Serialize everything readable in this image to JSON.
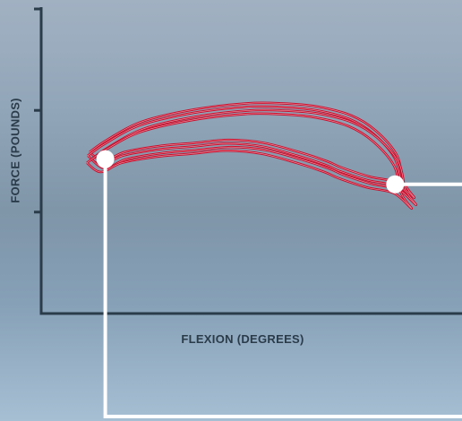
{
  "colors": {
    "axis": "#2a3b4a",
    "curve": "#c8102e",
    "curve_inner": "#f2c3cb",
    "callout": "#ffffff"
  },
  "chart_data": {
    "type": "line",
    "title": "",
    "xlabel": "FLEXION (DEGREES)",
    "ylabel": "FORCE (POUNDS)",
    "xlim": [
      0,
      100
    ],
    "ylim": [
      0,
      100
    ],
    "yticks_unlabeled": [
      33.3,
      66.7,
      100
    ],
    "grid": false,
    "legend": "none",
    "series": [
      {
        "x": [
          0,
          5,
          15,
          30,
          45,
          55,
          65,
          75,
          82,
          88,
          90,
          93,
          88,
          80,
          72,
          68,
          60,
          50,
          40,
          30,
          20,
          10,
          4,
          0
        ],
        "values": [
          53,
          57,
          63,
          67,
          69,
          69,
          68,
          65,
          60,
          52,
          43,
          38,
          43,
          45,
          48,
          50,
          53,
          56,
          57,
          56,
          55,
          53,
          50,
          53
        ]
      }
    ],
    "markers": [
      {
        "x": 4,
        "y": 51
      },
      {
        "x": 87,
        "y": 43
      }
    ]
  }
}
